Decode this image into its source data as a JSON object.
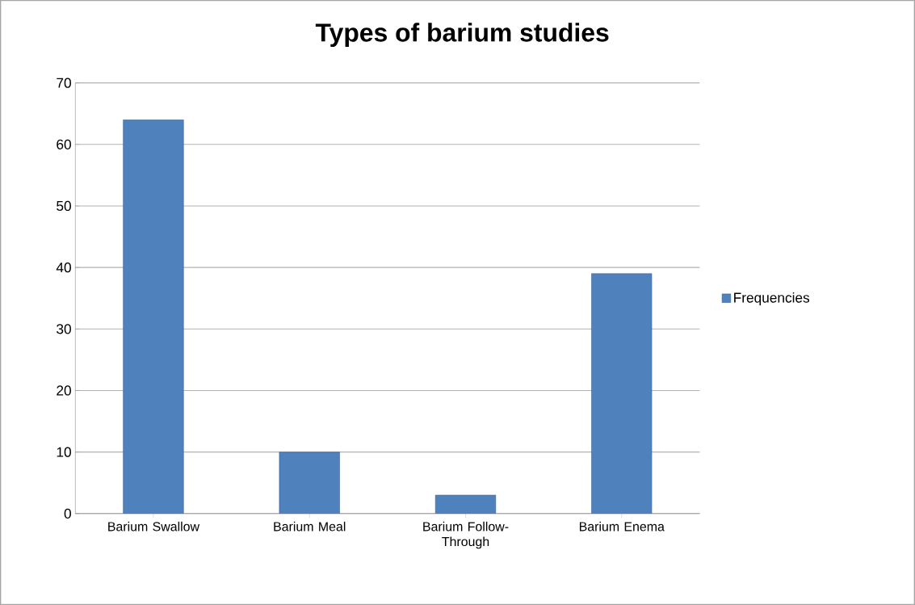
{
  "chart_data": {
    "type": "bar",
    "title": "Types of barium studies",
    "categories": [
      "Barium Swallow",
      "Barium Meal",
      "Barium Follow-Through",
      "Barium Enema"
    ],
    "series": [
      {
        "name": "Frequencies",
        "color": "#4f81bd",
        "values": [
          64,
          10,
          3,
          39
        ]
      }
    ],
    "ylim": [
      0,
      70
    ],
    "yticks": [
      0,
      10,
      20,
      30,
      40,
      50,
      60,
      70
    ],
    "grid": "y",
    "legend": "right"
  }
}
